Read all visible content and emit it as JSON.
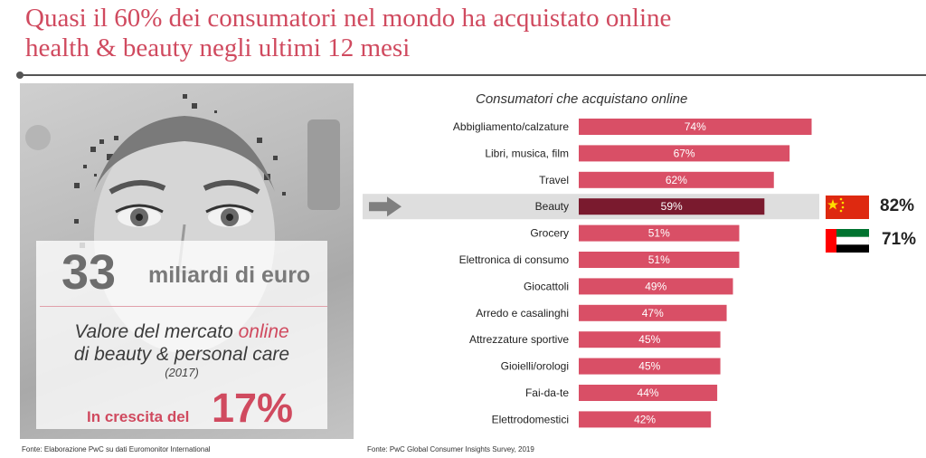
{
  "header": {
    "title_line1": "Quasi il 60% dei consumatori nel mondo ha acquistato online",
    "title_line2": "health & beauty negli ultimi 12 mesi"
  },
  "left_panel": {
    "big_number": "33",
    "big_unit": "miliardi di euro",
    "desc_line1_pre": "Valore del mercato ",
    "desc_line1_hl": "online",
    "desc_line2": "di beauty & personal care",
    "year": "(2017)",
    "growth_label": "In crescita del",
    "growth_value": "17%",
    "source": "Fonte: Elaborazione PwC su dati Euromonitor International"
  },
  "right_panel": {
    "source": "Fonte: PwC Global Consumer Insights Survey, 2019"
  },
  "colors": {
    "accent": "#d04a5f",
    "bar": "#d94f66",
    "bar_highlight": "#7a1a2e",
    "highlight_band": "#dedede"
  },
  "flags": [
    {
      "icon": "china-flag-icon",
      "value": "82%"
    },
    {
      "icon": "uae-flag-icon",
      "value": "71%"
    }
  ],
  "chart_data": {
    "type": "bar",
    "orientation": "horizontal",
    "title": "Consumatori che acquistano online",
    "categories": [
      "Abbigliamento/calzature",
      "Libri, musica, film",
      "Travel",
      "Beauty",
      "Grocery",
      "Elettronica di consumo",
      "Giocattoli",
      "Arredo e casalinghi",
      "Attrezzature sportive",
      "Gioielli/orologi",
      "Fai-da-te",
      "Elettrodomestici"
    ],
    "values": [
      74,
      67,
      62,
      59,
      51,
      51,
      49,
      47,
      45,
      45,
      44,
      42
    ],
    "value_labels": [
      "74%",
      "67%",
      "62%",
      "59%",
      "51%",
      "51%",
      "49%",
      "47%",
      "45%",
      "45%",
      "44%",
      "42%"
    ],
    "highlight": "Beauty",
    "xlim": [
      0,
      100
    ]
  }
}
